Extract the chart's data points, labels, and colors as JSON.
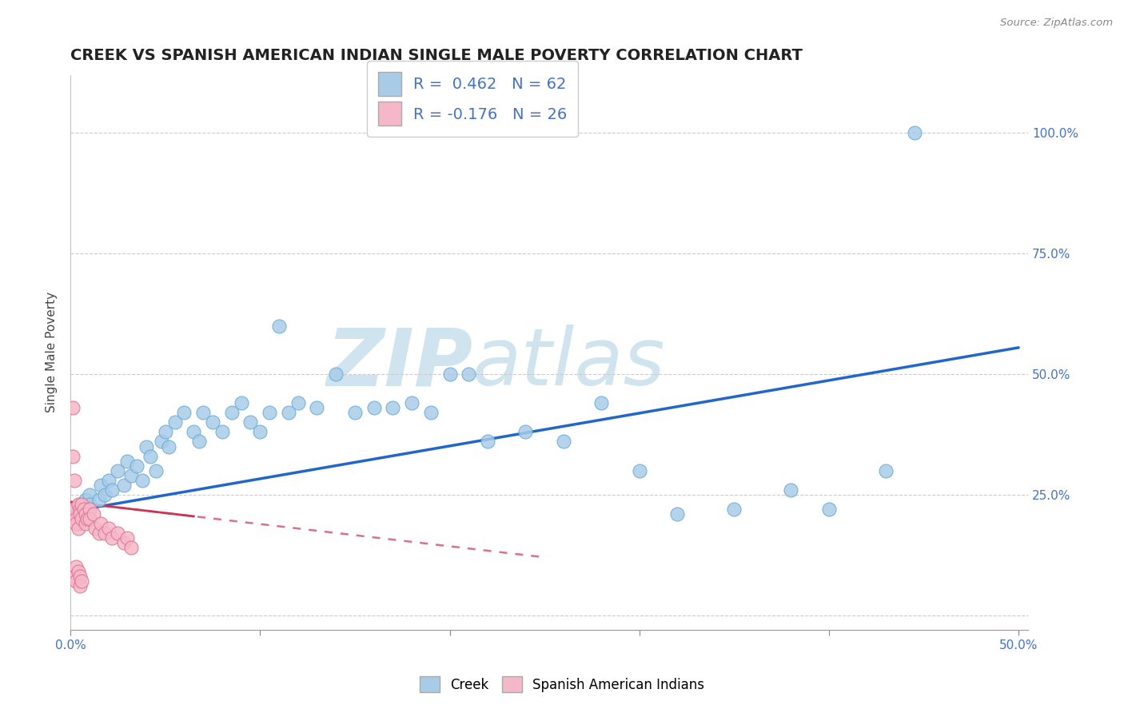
{
  "title": "CREEK VS SPANISH AMERICAN INDIAN SINGLE MALE POVERTY CORRELATION CHART",
  "source": "Source: ZipAtlas.com",
  "ylabel": "Single Male Poverty",
  "xlim": [
    0.0,
    0.505
  ],
  "ylim": [
    -0.03,
    1.12
  ],
  "creek_color": "#a8cce8",
  "creek_edge": "#6aaad4",
  "sai_color": "#f5b8c8",
  "sai_edge": "#e07090",
  "trend_creek_color": "#2266cc",
  "trend_sai_color": "#cc3355",
  "watermark_color": "#d0e4f0",
  "creek_R": 0.462,
  "creek_N": 62,
  "sai_R": -0.176,
  "sai_N": 26,
  "ytick_vals": [
    0.0,
    0.25,
    0.5,
    0.75,
    1.0
  ],
  "ytick_labels_right": [
    "",
    "25.0%",
    "50.0%",
    "75.0%",
    "100.0%"
  ],
  "xtick_vals": [
    0.0,
    0.1,
    0.2,
    0.3,
    0.4,
    0.5
  ],
  "xtick_labels": [
    "0.0%",
    "",
    "",
    "",
    "",
    "50.0%"
  ],
  "creek_x": [
    0.002,
    0.003,
    0.004,
    0.005,
    0.006,
    0.007,
    0.008,
    0.009,
    0.01,
    0.01,
    0.015,
    0.016,
    0.018,
    0.02,
    0.022,
    0.025,
    0.028,
    0.03,
    0.032,
    0.035,
    0.038,
    0.04,
    0.042,
    0.045,
    0.048,
    0.05,
    0.052,
    0.055,
    0.06,
    0.065,
    0.068,
    0.07,
    0.075,
    0.08,
    0.085,
    0.09,
    0.095,
    0.1,
    0.105,
    0.11,
    0.115,
    0.12,
    0.13,
    0.14,
    0.15,
    0.16,
    0.17,
    0.18,
    0.19,
    0.2,
    0.21,
    0.22,
    0.24,
    0.26,
    0.28,
    0.3,
    0.32,
    0.35,
    0.38,
    0.4,
    0.43,
    0.445
  ],
  "creek_y": [
    0.2,
    0.22,
    0.19,
    0.23,
    0.21,
    0.2,
    0.24,
    0.22,
    0.25,
    0.23,
    0.24,
    0.27,
    0.25,
    0.28,
    0.26,
    0.3,
    0.27,
    0.32,
    0.29,
    0.31,
    0.28,
    0.35,
    0.33,
    0.3,
    0.36,
    0.38,
    0.35,
    0.4,
    0.42,
    0.38,
    0.36,
    0.42,
    0.4,
    0.38,
    0.42,
    0.44,
    0.4,
    0.38,
    0.42,
    0.6,
    0.42,
    0.44,
    0.43,
    0.5,
    0.42,
    0.43,
    0.43,
    0.44,
    0.42,
    0.5,
    0.5,
    0.36,
    0.38,
    0.36,
    0.44,
    0.3,
    0.21,
    0.22,
    0.26,
    0.22,
    0.3,
    1.0
  ],
  "sai_x": [
    0.002,
    0.003,
    0.003,
    0.004,
    0.004,
    0.005,
    0.005,
    0.006,
    0.006,
    0.007,
    0.008,
    0.008,
    0.009,
    0.01,
    0.01,
    0.012,
    0.013,
    0.015,
    0.016,
    0.018,
    0.02,
    0.022,
    0.025,
    0.028,
    0.03,
    0.032
  ],
  "sai_y": [
    0.22,
    0.2,
    0.19,
    0.23,
    0.18,
    0.22,
    0.21,
    0.23,
    0.2,
    0.22,
    0.21,
    0.19,
    0.2,
    0.22,
    0.2,
    0.21,
    0.18,
    0.17,
    0.19,
    0.17,
    0.18,
    0.16,
    0.17,
    0.15,
    0.16,
    0.14
  ],
  "sai_extra_x": [
    0.001,
    0.001,
    0.002,
    0.002,
    0.003,
    0.003,
    0.004,
    0.005,
    0.005,
    0.006
  ],
  "sai_extra_y": [
    0.43,
    0.33,
    0.28,
    0.08,
    0.1,
    0.07,
    0.09,
    0.08,
    0.06,
    0.07
  ]
}
